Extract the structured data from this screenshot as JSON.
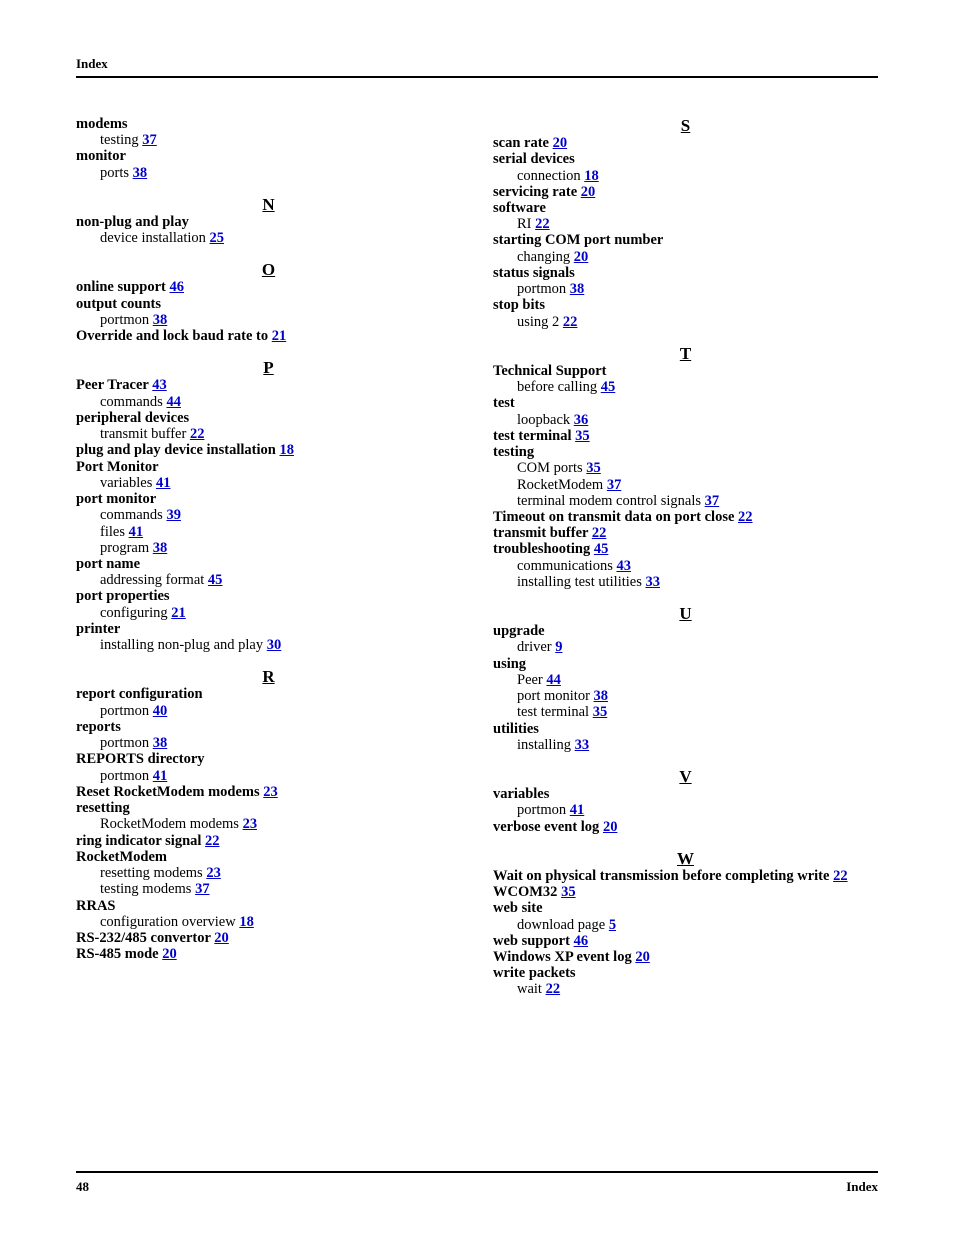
{
  "header_label": "Index",
  "footer_page": "48",
  "footer_label": "Index",
  "link_color": "#0000cc",
  "columns": [
    {
      "sections": [
        {
          "letter": null,
          "first": true,
          "items": [
            {
              "type": "term",
              "text": "modems"
            },
            {
              "type": "sub",
              "text": "testing ",
              "page": "37"
            },
            {
              "type": "term",
              "text": "monitor"
            },
            {
              "type": "sub",
              "text": "ports ",
              "page": "38"
            }
          ]
        },
        {
          "letter": "N",
          "items": [
            {
              "type": "term",
              "text": "non-plug and play"
            },
            {
              "type": "sub",
              "text": "device installation ",
              "page": "25"
            }
          ]
        },
        {
          "letter": "O",
          "items": [
            {
              "type": "term_linked",
              "text": "online support ",
              "page": "46"
            },
            {
              "type": "term",
              "text": "output counts"
            },
            {
              "type": "sub",
              "text": "portmon ",
              "page": "38"
            },
            {
              "type": "term_linked",
              "text": "Override and lock baud rate to ",
              "page": "21"
            }
          ]
        },
        {
          "letter": "P",
          "items": [
            {
              "type": "term_linked",
              "text": "Peer Tracer ",
              "page": "43"
            },
            {
              "type": "sub",
              "text": "commands ",
              "page": "44"
            },
            {
              "type": "term",
              "text": "peripheral devices"
            },
            {
              "type": "sub",
              "text": "transmit buffer ",
              "page": "22"
            },
            {
              "type": "term_linked",
              "text": "plug and play device installation ",
              "page": "18"
            },
            {
              "type": "term",
              "text": "Port Monitor"
            },
            {
              "type": "sub",
              "text": "variables ",
              "page": "41"
            },
            {
              "type": "term",
              "text": "port monitor"
            },
            {
              "type": "sub",
              "text": "commands ",
              "page": "39"
            },
            {
              "type": "sub",
              "text": "files ",
              "page": "41"
            },
            {
              "type": "sub",
              "text": "program ",
              "page": "38"
            },
            {
              "type": "term",
              "text": "port name"
            },
            {
              "type": "sub",
              "text": "addressing format ",
              "page": "45"
            },
            {
              "type": "term",
              "text": "port properties"
            },
            {
              "type": "sub",
              "text": "configuring ",
              "page": "21"
            },
            {
              "type": "term",
              "text": "printer"
            },
            {
              "type": "sub",
              "text": "installing non-plug and play ",
              "page": "30"
            }
          ]
        },
        {
          "letter": "R",
          "items": [
            {
              "type": "term",
              "text": "report configuration"
            },
            {
              "type": "sub",
              "text": "portmon ",
              "page": "40"
            },
            {
              "type": "term",
              "text": "reports"
            },
            {
              "type": "sub",
              "text": "portmon ",
              "page": "38"
            },
            {
              "type": "term",
              "text": "REPORTS directory"
            },
            {
              "type": "sub",
              "text": "portmon ",
              "page": "41"
            },
            {
              "type": "term_linked",
              "text": "Reset RocketModem modems ",
              "page": "23"
            },
            {
              "type": "term",
              "text": "resetting"
            },
            {
              "type": "sub",
              "text": "RocketModem modems ",
              "page": "23"
            },
            {
              "type": "term_linked",
              "text": "ring indicator signal ",
              "page": "22"
            },
            {
              "type": "term",
              "text": "RocketModem"
            },
            {
              "type": "sub",
              "text": "resetting modems ",
              "page": "23"
            },
            {
              "type": "sub",
              "text": "testing modems ",
              "page": "37"
            },
            {
              "type": "term",
              "text": "RRAS"
            },
            {
              "type": "sub",
              "text": "configuration overview ",
              "page": "18"
            },
            {
              "type": "term_linked",
              "text": "RS-232/485 convertor ",
              "page": "20"
            },
            {
              "type": "term_linked",
              "text": "RS-485 mode ",
              "page": "20"
            }
          ]
        }
      ]
    },
    {
      "sections": [
        {
          "letter": "S",
          "first": true,
          "items": [
            {
              "type": "term_linked",
              "text": "scan rate ",
              "page": "20"
            },
            {
              "type": "term",
              "text": "serial devices"
            },
            {
              "type": "sub",
              "text": "connection ",
              "page": "18"
            },
            {
              "type": "term_linked",
              "text": "servicing rate ",
              "page": "20"
            },
            {
              "type": "term",
              "text": "software"
            },
            {
              "type": "sub",
              "text": "RI ",
              "page": "22"
            },
            {
              "type": "term",
              "text": "starting COM port number"
            },
            {
              "type": "sub",
              "text": "changing ",
              "page": "20"
            },
            {
              "type": "term",
              "text": "status signals"
            },
            {
              "type": "sub",
              "text": "portmon ",
              "page": "38"
            },
            {
              "type": "term",
              "text": "stop bits"
            },
            {
              "type": "sub",
              "text": "using 2 ",
              "page": "22"
            }
          ]
        },
        {
          "letter": "T",
          "items": [
            {
              "type": "term",
              "text": "Technical Support"
            },
            {
              "type": "sub",
              "text": "before calling ",
              "page": "45"
            },
            {
              "type": "term",
              "text": "test"
            },
            {
              "type": "sub",
              "text": "loopback ",
              "page": "36"
            },
            {
              "type": "term_linked",
              "text": "test terminal ",
              "page": "35"
            },
            {
              "type": "term",
              "text": "testing"
            },
            {
              "type": "sub",
              "text": "COM ports ",
              "page": "35"
            },
            {
              "type": "sub",
              "text": "RocketModem ",
              "page": "37"
            },
            {
              "type": "sub",
              "text": "terminal modem control signals ",
              "page": "37"
            },
            {
              "type": "term_linked",
              "text": "Timeout on transmit data on port close ",
              "page": "22"
            },
            {
              "type": "term_linked",
              "text": "transmit buffer ",
              "page": "22"
            },
            {
              "type": "term_linked",
              "text": "troubleshooting ",
              "page": "45"
            },
            {
              "type": "sub",
              "text": "communications ",
              "page": "43"
            },
            {
              "type": "sub",
              "text": "installing test utilities ",
              "page": "33"
            }
          ]
        },
        {
          "letter": "U",
          "items": [
            {
              "type": "term",
              "text": "upgrade"
            },
            {
              "type": "sub",
              "text": "driver ",
              "page": "9"
            },
            {
              "type": "term",
              "text": "using"
            },
            {
              "type": "sub",
              "text": "Peer ",
              "page": "44"
            },
            {
              "type": "sub",
              "text": "port monitor ",
              "page": "38"
            },
            {
              "type": "sub",
              "text": "test terminal ",
              "page": "35"
            },
            {
              "type": "term",
              "text": "utilities"
            },
            {
              "type": "sub",
              "text": "installing ",
              "page": "33"
            }
          ]
        },
        {
          "letter": "V",
          "items": [
            {
              "type": "term",
              "text": "variables"
            },
            {
              "type": "sub",
              "text": "portmon ",
              "page": "41"
            },
            {
              "type": "term_linked",
              "text": "verbose event log ",
              "page": "20"
            }
          ]
        },
        {
          "letter": "W",
          "items": [
            {
              "type": "term_linked",
              "text": "Wait on physical transmission before completing write ",
              "page": "22"
            },
            {
              "type": "term_linked",
              "text": "WCOM32 ",
              "page": "35"
            },
            {
              "type": "term",
              "text": "web site"
            },
            {
              "type": "sub",
              "text": "download page ",
              "page": "5"
            },
            {
              "type": "term_linked",
              "text": "web support ",
              "page": "46"
            },
            {
              "type": "term_linked",
              "text": "Windows XP event log ",
              "page": "20"
            },
            {
              "type": "term",
              "text": "write packets"
            },
            {
              "type": "sub",
              "text": "wait ",
              "page": "22"
            }
          ]
        }
      ]
    }
  ]
}
